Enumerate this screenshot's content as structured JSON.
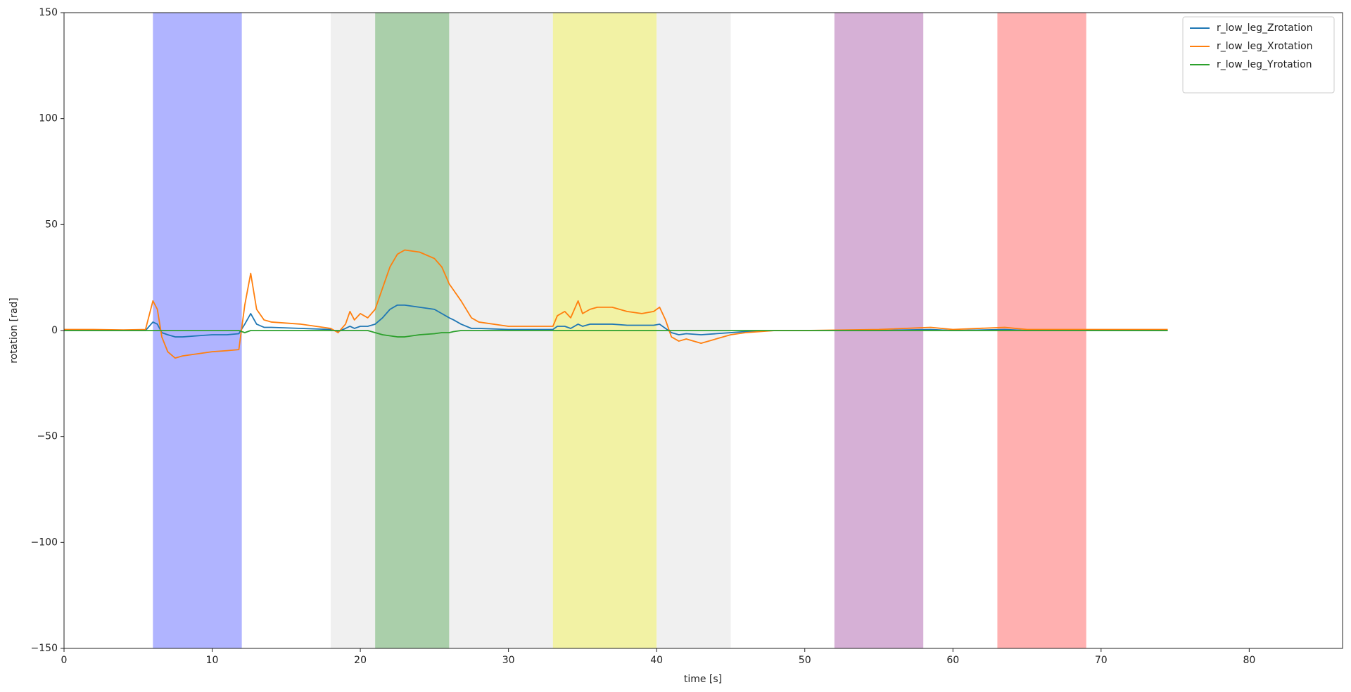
{
  "chart_data": {
    "type": "line",
    "x_label": "time [s]",
    "y_label": "rotation [rad]",
    "xlim": [
      0,
      86.3
    ],
    "ylim": [
      -150,
      150
    ],
    "xticks": [
      0,
      10,
      20,
      30,
      40,
      50,
      60,
      70,
      80
    ],
    "yticks": [
      {
        "value": -150,
        "label": "−150"
      },
      {
        "value": -100,
        "label": "−100"
      },
      {
        "value": -50,
        "label": "−50"
      },
      0,
      50,
      100,
      150
    ],
    "legend": "upper right",
    "spans": [
      {
        "start": 6,
        "end": 12,
        "color": "#b0b4ff"
      },
      {
        "start": 18,
        "end": 21,
        "color": "#f0f0f0"
      },
      {
        "start": 21,
        "end": 26,
        "color": "#aacfaa"
      },
      {
        "start": 26,
        "end": 33,
        "color": "#f0f0f0"
      },
      {
        "start": 33,
        "end": 40,
        "color": "#f2f2a4"
      },
      {
        "start": 40,
        "end": 45,
        "color": "#f0f0f0"
      },
      {
        "start": 52,
        "end": 58,
        "color": "#d6b0d6"
      },
      {
        "start": 63,
        "end": 69,
        "color": "#ffb0b0"
      }
    ],
    "x": [
      0,
      2,
      4,
      5.5,
      6,
      6.3,
      6.6,
      7,
      7.5,
      8,
      9,
      10,
      11,
      11.8,
      12.2,
      12.6,
      13,
      13.5,
      14,
      16,
      18,
      18.5,
      19,
      19.3,
      19.6,
      20,
      20.5,
      21,
      21.5,
      22,
      22.5,
      23,
      24,
      25,
      25.5,
      26,
      26.3,
      26.8,
      27.5,
      28,
      30,
      32,
      33,
      33.3,
      33.8,
      34.2,
      34.7,
      35,
      35.5,
      36,
      37,
      38,
      39,
      39.8,
      40.2,
      40.6,
      41,
      41.5,
      42,
      43,
      44,
      45,
      46,
      48,
      50,
      55,
      58.5,
      60,
      63.5,
      65,
      70,
      74.5
    ],
    "series": [
      {
        "name": "r_low_leg_Zrotation",
        "color": "#1f77b4",
        "values": [
          0,
          0,
          0,
          0,
          4,
          3,
          -1,
          -2,
          -3,
          -3,
          -2.5,
          -2,
          -2,
          -1.5,
          3,
          8,
          3,
          1.5,
          1.5,
          1,
          0.5,
          -0.5,
          1,
          2,
          1,
          2,
          2,
          3,
          6,
          10,
          12,
          12,
          11,
          10,
          8,
          6,
          5,
          3,
          1,
          1,
          0.5,
          0.5,
          0.5,
          2,
          2,
          1,
          3,
          2,
          3,
          3,
          3,
          2.5,
          2.5,
          2.5,
          3,
          1,
          -1,
          -2,
          -1.5,
          -2,
          -1.5,
          -1,
          -0.5,
          0,
          0,
          0,
          0.5,
          0,
          0.5,
          0,
          0,
          0
        ]
      },
      {
        "name": "r_low_leg_Xrotation",
        "color": "#ff7f0e",
        "values": [
          0.5,
          0.5,
          0.3,
          0.5,
          14,
          10,
          -3,
          -10,
          -13,
          -12,
          -11,
          -10,
          -9.5,
          -9,
          12,
          27,
          10,
          5,
          4,
          3,
          1,
          -1,
          3,
          9,
          5,
          8,
          6,
          10,
          20,
          30,
          36,
          38,
          37,
          34,
          30,
          22,
          19,
          14,
          6,
          4,
          2,
          2,
          2,
          7,
          9,
          6,
          14,
          8,
          10,
          11,
          11,
          9,
          8,
          9,
          11,
          5,
          -3,
          -5,
          -4,
          -6,
          -4,
          -2,
          -1,
          0,
          0,
          0.5,
          1.5,
          0.5,
          1.5,
          0.5,
          0.5,
          0.5
        ]
      },
      {
        "name": "r_low_leg_Yrotation",
        "color": "#2ca02c",
        "values": [
          0,
          0,
          0,
          0,
          0,
          0,
          0,
          0,
          0,
          0,
          0,
          0,
          0,
          0,
          -1,
          0,
          0,
          0,
          0,
          0,
          0,
          0,
          0,
          0,
          0,
          0,
          0,
          -1,
          -2,
          -2.5,
          -3,
          -3,
          -2,
          -1.5,
          -1,
          -1,
          -0.5,
          0,
          0,
          0,
          0,
          0,
          0,
          0,
          0,
          0,
          0,
          0,
          0,
          0,
          0,
          0,
          0,
          0,
          0,
          0,
          0,
          0,
          0,
          0,
          0,
          0,
          0,
          0,
          0,
          0,
          0,
          0,
          0,
          0,
          0,
          0
        ]
      }
    ]
  }
}
